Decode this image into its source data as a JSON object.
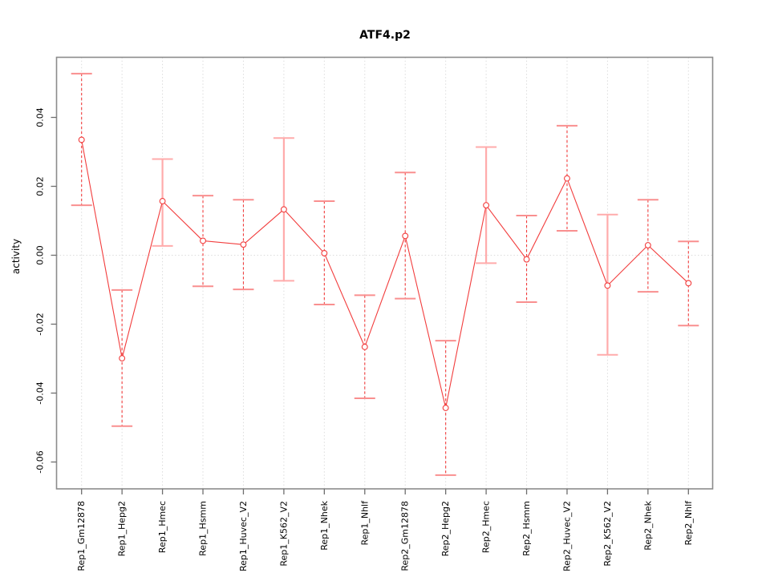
{
  "chart_data": {
    "type": "line",
    "title": "ATF4.p2",
    "xlabel": "",
    "ylabel": "activity",
    "legend": "none",
    "grid": "dotted vertical gridline at each category, dotted horizontal line at zero",
    "marker": "open-circle",
    "categories": [
      "Rep1_Gm12878",
      "Rep1_Hepg2",
      "Rep1_Hmec",
      "Rep1_Hsmm",
      "Rep1_Huvec_V2",
      "Rep1_K562_V2",
      "Rep1_Nhek",
      "Rep1_Nhlf",
      "Rep2_Gm12878",
      "Rep2_Hepg2",
      "Rep2_Hmec",
      "Rep2_Hsmm",
      "Rep2_Huvec_V2",
      "Rep2_K562_V2",
      "Rep2_Nhek",
      "Rep2_Nhlf"
    ],
    "series": [
      {
        "name": "activity",
        "values": [
          0.0335,
          -0.0299,
          0.0157,
          0.0042,
          0.0031,
          0.0133,
          0.0006,
          -0.0266,
          0.0056,
          -0.0443,
          0.0145,
          -0.0012,
          0.0223,
          -0.0088,
          0.0029,
          -0.0081
        ],
        "ci_low": [
          0.0145,
          -0.0496,
          0.0027,
          -0.009,
          -0.0099,
          -0.0074,
          -0.0143,
          -0.0415,
          -0.0126,
          -0.0638,
          -0.0023,
          -0.0136,
          0.0071,
          -0.0289,
          -0.0106,
          -0.0204
        ],
        "ci_high": [
          0.0527,
          -0.0101,
          0.0279,
          0.0173,
          0.0161,
          0.034,
          0.0157,
          -0.0116,
          0.024,
          -0.0248,
          0.0314,
          0.0115,
          0.0376,
          0.0118,
          0.0161,
          0.004
        ]
      }
    ],
    "errorbar_styles": [
      "dashed",
      "dashed",
      "solid",
      "dashed",
      "dashed",
      "solid",
      "dashed",
      "dashed",
      "dashed",
      "dashed",
      "solid",
      "dashed",
      "dashed",
      "solid",
      "dashed",
      "dashed"
    ],
    "yticks": [
      0.04,
      0.02,
      0.0,
      -0.02,
      -0.04,
      -0.06
    ],
    "ylim": [
      -0.0674,
      0.0575
    ],
    "colors": {
      "line": "#f23d3d",
      "marker": "#f23d3d",
      "errorbar_dashed": "#f23d3d",
      "errorbar_solid": "#ffabab",
      "errorbar_cap": "#f98f8f",
      "gridline": "#dcdcdc",
      "zero_line": "#dcdcdc",
      "axis_box": "#8c8c8c",
      "tick": "#6e6e6e",
      "text": "#000000"
    }
  }
}
